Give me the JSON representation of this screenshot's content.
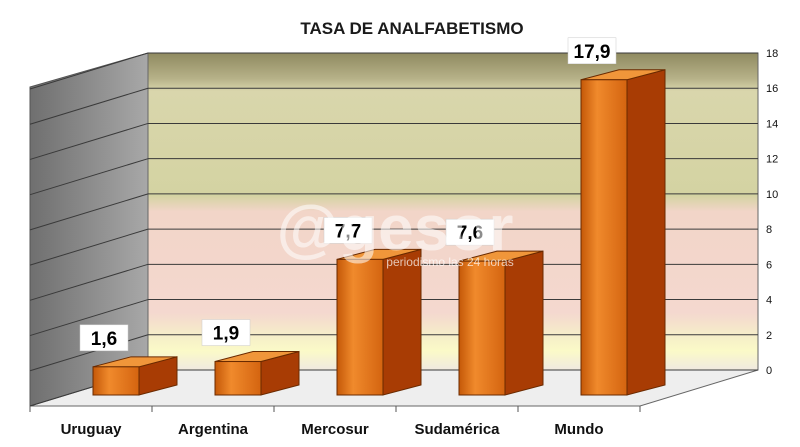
{
  "chart_data": {
    "type": "bar",
    "title": "TASA DE ANALFABETISMO",
    "categories": [
      "Uruguay",
      "Argentina",
      "Mercosur",
      "Sudamérica",
      "Mundo"
    ],
    "values": [
      1.6,
      1.9,
      7.7,
      7.6,
      17.9
    ],
    "value_labels": [
      "1,6",
      "1,9",
      "7,7",
      "7,6",
      "17,9"
    ],
    "ylim": [
      0,
      18
    ],
    "yticks": [
      0,
      2,
      4,
      6,
      8,
      10,
      12,
      14,
      16,
      18
    ],
    "grid": true,
    "style": "3d-bar",
    "bar_color": "#e06c10"
  },
  "watermark": {
    "logo": "@gesor",
    "text": "periodismo las 24 horas"
  }
}
